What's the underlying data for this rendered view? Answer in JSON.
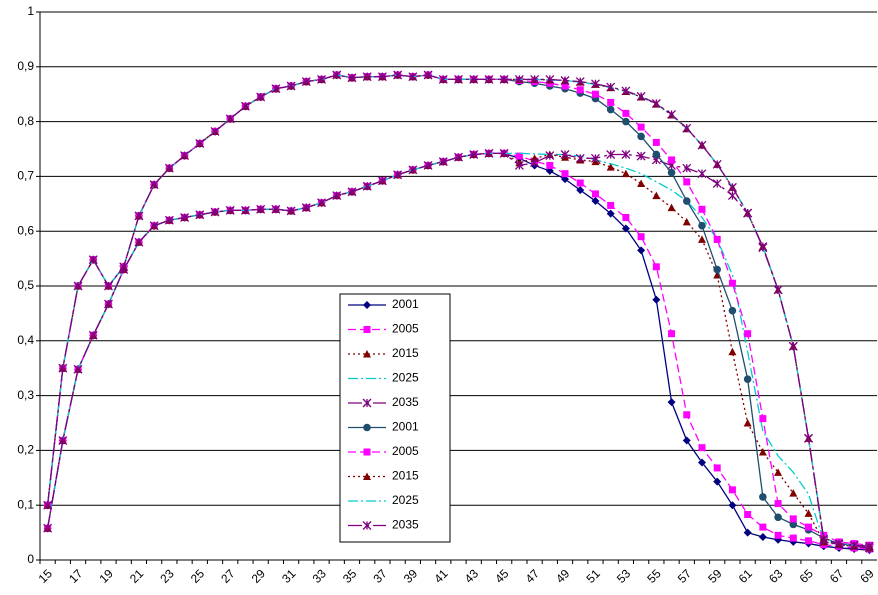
{
  "chart_data": {
    "type": "line",
    "categories": [
      "15",
      null,
      "17",
      null,
      "19",
      null,
      "21",
      null,
      "23",
      null,
      "25",
      null,
      "27",
      null,
      "29",
      null,
      "31",
      null,
      "33",
      null,
      "35",
      null,
      "37",
      null,
      "39",
      null,
      "41",
      null,
      "43",
      null,
      "45",
      null,
      "47",
      null,
      "49",
      null,
      "51",
      null,
      "53",
      null,
      "55",
      null,
      "57",
      null,
      "59",
      null,
      "61",
      null,
      "63",
      null,
      "65",
      null,
      "67",
      null,
      "69"
    ],
    "ylim": [
      0,
      1
    ],
    "yticks": [
      0,
      {
        "value": 0.1,
        "label": "0,1"
      },
      {
        "value": 0.2,
        "label": "0,2"
      },
      {
        "value": 0.3,
        "label": "0,3"
      },
      {
        "value": 0.4,
        "label": "0,4"
      },
      {
        "value": 0.5,
        "label": "0,5"
      },
      {
        "value": 0.6,
        "label": "0,6"
      },
      {
        "value": 0.7,
        "label": "0,7"
      },
      {
        "value": 0.8,
        "label": "0,8"
      },
      {
        "value": 0.9,
        "label": "0,9"
      },
      1
    ],
    "grid": true,
    "series": [
      {
        "name": "2001",
        "color": "#000080",
        "marker": "diamond",
        "line_style": "solid",
        "values": [
          0.058,
          0.218,
          0.348,
          0.41,
          0.467,
          0.53,
          0.58,
          0.61,
          0.62,
          0.625,
          0.63,
          0.635,
          0.638,
          0.638,
          0.64,
          0.64,
          0.637,
          0.643,
          0.652,
          0.665,
          0.672,
          0.682,
          0.692,
          0.703,
          0.712,
          0.72,
          0.727,
          0.735,
          0.74,
          0.742,
          0.742,
          0.733,
          0.72,
          0.71,
          0.695,
          0.675,
          0.655,
          0.632,
          0.605,
          0.565,
          0.475,
          0.288,
          0.218,
          0.178,
          0.143,
          0.1,
          0.05,
          0.042,
          0.037,
          0.033,
          0.03,
          0.025,
          0.022,
          0.02,
          0.018
        ]
      },
      {
        "name": "2005",
        "color": "#ff00ff",
        "marker": "square",
        "line_style": "dashed",
        "values": [
          0.058,
          0.218,
          0.348,
          0.41,
          0.467,
          0.53,
          0.58,
          0.61,
          0.62,
          0.625,
          0.63,
          0.635,
          0.638,
          0.638,
          0.64,
          0.64,
          0.637,
          0.643,
          0.652,
          0.665,
          0.672,
          0.682,
          0.692,
          0.703,
          0.712,
          0.72,
          0.727,
          0.735,
          0.74,
          0.742,
          0.742,
          0.737,
          0.728,
          0.72,
          0.705,
          0.688,
          0.668,
          0.647,
          0.625,
          0.59,
          0.535,
          0.413,
          0.265,
          0.205,
          0.168,
          0.128,
          0.083,
          0.06,
          0.045,
          0.04,
          0.035,
          0.028,
          0.025,
          0.022,
          0.02
        ]
      },
      {
        "name": "2015",
        "color": "#800000",
        "marker": "triangle",
        "line_style": "dotted",
        "values": [
          0.058,
          0.218,
          0.348,
          0.41,
          0.467,
          0.53,
          0.58,
          0.61,
          0.62,
          0.625,
          0.63,
          0.635,
          0.638,
          0.638,
          0.64,
          0.64,
          0.637,
          0.643,
          0.652,
          0.665,
          0.672,
          0.682,
          0.692,
          0.703,
          0.712,
          0.72,
          0.727,
          0.735,
          0.74,
          0.742,
          0.742,
          0.725,
          0.733,
          0.74,
          0.735,
          0.73,
          0.727,
          0.717,
          0.705,
          0.687,
          0.665,
          0.643,
          0.617,
          0.585,
          0.52,
          0.38,
          0.25,
          0.197,
          0.16,
          0.122,
          0.085,
          0.033,
          0.028,
          0.025,
          0.022
        ]
      },
      {
        "name": "2025",
        "color": "#00cccc",
        "marker": "none",
        "line_style": "dashdot",
        "values": [
          0.058,
          0.218,
          0.348,
          0.41,
          0.467,
          0.53,
          0.58,
          0.61,
          0.62,
          0.625,
          0.63,
          0.635,
          0.638,
          0.638,
          0.64,
          0.64,
          0.637,
          0.643,
          0.652,
          0.665,
          0.672,
          0.682,
          0.692,
          0.703,
          0.712,
          0.72,
          0.727,
          0.735,
          0.74,
          0.742,
          0.742,
          0.742,
          0.741,
          0.74,
          0.74,
          0.737,
          0.73,
          0.723,
          0.715,
          0.705,
          0.69,
          0.675,
          0.655,
          0.625,
          0.585,
          0.52,
          0.38,
          0.235,
          0.19,
          0.16,
          0.12,
          0.035,
          0.028,
          0.025,
          0.022
        ]
      },
      {
        "name": "2035",
        "color": "#800080",
        "marker": "asterisk",
        "line_style": "longdashdot",
        "values": [
          0.058,
          0.218,
          0.348,
          0.41,
          0.467,
          0.53,
          0.58,
          0.61,
          0.62,
          0.625,
          0.63,
          0.635,
          0.638,
          0.638,
          0.64,
          0.64,
          0.637,
          0.643,
          0.652,
          0.665,
          0.672,
          0.682,
          0.692,
          0.703,
          0.712,
          0.72,
          0.727,
          0.735,
          0.74,
          0.742,
          0.742,
          0.72,
          0.725,
          0.738,
          0.74,
          0.733,
          0.733,
          0.74,
          0.74,
          0.737,
          0.73,
          0.72,
          0.715,
          0.705,
          0.687,
          0.665,
          0.633,
          0.57,
          0.493,
          0.39,
          0.222,
          0.035,
          0.028,
          0.025,
          0.022
        ]
      },
      {
        "name": "2001",
        "color": "#1f4e6e",
        "marker": "circle",
        "line_style": "solid",
        "values": [
          0.1,
          0.35,
          0.5,
          0.548,
          0.5,
          0.535,
          0.628,
          0.685,
          0.715,
          0.738,
          0.76,
          0.782,
          0.805,
          0.828,
          0.845,
          0.86,
          0.865,
          0.873,
          0.877,
          0.885,
          0.88,
          0.882,
          0.882,
          0.885,
          0.882,
          0.885,
          0.877,
          0.877,
          0.877,
          0.877,
          0.877,
          0.873,
          0.87,
          0.865,
          0.86,
          0.852,
          0.842,
          0.822,
          0.8,
          0.773,
          0.74,
          0.707,
          0.655,
          0.61,
          0.53,
          0.455,
          0.33,
          0.115,
          0.078,
          0.065,
          0.055,
          0.04,
          0.03,
          0.027,
          0.025
        ]
      },
      {
        "name": "2005",
        "color": "#ff00ff",
        "marker": "square",
        "line_style": "dashed",
        "values": [
          0.1,
          0.35,
          0.5,
          0.548,
          0.5,
          0.535,
          0.628,
          0.685,
          0.715,
          0.738,
          0.76,
          0.782,
          0.805,
          0.828,
          0.845,
          0.86,
          0.865,
          0.873,
          0.877,
          0.885,
          0.88,
          0.882,
          0.882,
          0.885,
          0.882,
          0.885,
          0.877,
          0.877,
          0.877,
          0.877,
          0.877,
          0.875,
          0.873,
          0.87,
          0.865,
          0.858,
          0.85,
          0.835,
          0.815,
          0.79,
          0.762,
          0.73,
          0.69,
          0.64,
          0.585,
          0.505,
          0.413,
          0.258,
          0.103,
          0.075,
          0.06,
          0.045,
          0.033,
          0.03,
          0.027
        ]
      },
      {
        "name": "2015",
        "color": "#800000",
        "marker": "triangle",
        "line_style": "dotted",
        "values": [
          0.1,
          0.35,
          0.5,
          0.548,
          0.5,
          0.535,
          0.628,
          0.685,
          0.715,
          0.738,
          0.76,
          0.782,
          0.805,
          0.828,
          0.845,
          0.86,
          0.865,
          0.873,
          0.877,
          0.885,
          0.88,
          0.882,
          0.882,
          0.885,
          0.882,
          0.885,
          0.877,
          0.877,
          0.877,
          0.877,
          0.877,
          0.877,
          0.877,
          0.876,
          0.875,
          0.872,
          0.868,
          0.862,
          0.855,
          0.845,
          0.832,
          0.812,
          0.787,
          0.757,
          0.722,
          0.68,
          0.633,
          0.572,
          0.493,
          0.39,
          0.222,
          0.04,
          0.03,
          0.027,
          0.025
        ]
      },
      {
        "name": "2025",
        "color": "#00cccc",
        "marker": "none",
        "line_style": "dashdot",
        "values": [
          0.1,
          0.35,
          0.5,
          0.548,
          0.5,
          0.535,
          0.628,
          0.685,
          0.715,
          0.738,
          0.76,
          0.782,
          0.805,
          0.828,
          0.845,
          0.86,
          0.865,
          0.873,
          0.877,
          0.885,
          0.88,
          0.882,
          0.882,
          0.885,
          0.882,
          0.885,
          0.877,
          0.877,
          0.877,
          0.877,
          0.877,
          0.877,
          0.877,
          0.876,
          0.875,
          0.872,
          0.868,
          0.862,
          0.855,
          0.845,
          0.832,
          0.812,
          0.787,
          0.757,
          0.722,
          0.68,
          0.633,
          0.572,
          0.493,
          0.39,
          0.222,
          0.04,
          0.03,
          0.027,
          0.025
        ]
      },
      {
        "name": "2035",
        "color": "#800080",
        "marker": "asterisk",
        "line_style": "longdashdot",
        "values": [
          0.1,
          0.35,
          0.5,
          0.548,
          0.5,
          0.535,
          0.628,
          0.685,
          0.715,
          0.738,
          0.76,
          0.782,
          0.805,
          0.828,
          0.845,
          0.86,
          0.865,
          0.873,
          0.877,
          0.885,
          0.88,
          0.882,
          0.882,
          0.885,
          0.882,
          0.885,
          0.877,
          0.877,
          0.877,
          0.877,
          0.877,
          0.877,
          0.877,
          0.877,
          0.875,
          0.873,
          0.869,
          0.863,
          0.856,
          0.846,
          0.833,
          0.813,
          0.788,
          0.757,
          0.722,
          0.68,
          0.633,
          0.572,
          0.493,
          0.39,
          0.222,
          0.038,
          0.03,
          0.027,
          0.025
        ]
      }
    ]
  }
}
